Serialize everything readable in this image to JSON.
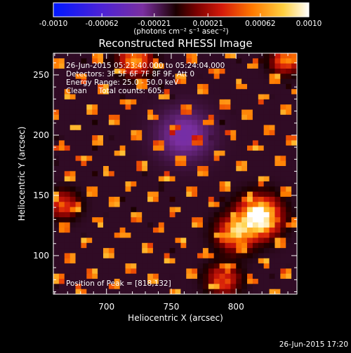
{
  "chart_data": {
    "type": "heatmap",
    "title": "Reconstructed RHESSI Image",
    "xlabel": "Heliocentric X (arcsec)",
    "ylabel": "Heliocentric Y (arcsec)",
    "xlim": [
      659,
      847
    ],
    "ylim": [
      68,
      268
    ],
    "x_ticks": [
      700,
      750,
      800
    ],
    "y_ticks": [
      100,
      150,
      200,
      250
    ],
    "colorbar": {
      "range": [
        -0.001,
        0.001
      ],
      "ticks": [
        "-0.0010",
        "-0.00062",
        "-0.00021",
        "0.00021",
        "0.00062",
        "0.0010"
      ],
      "units": "(photons cm⁻² s⁻¹ asec⁻²)",
      "colormap": [
        "#0018ff",
        "#5a20c8",
        "#7a2fa0",
        "#2a0000",
        "#b01010",
        "#ff3d00",
        "#ff9a00",
        "#ffe060",
        "#ffffff"
      ]
    },
    "annotations": [
      "26-Jun-2015 05:23:40.000 to 05:24:04.000",
      "Detectors: 3F 5F 6F 7F 8F 9F, Att 0",
      "Energy Range: 25.0 - 50.0 keV",
      "Clean     Total counts: 605.",
      "Position of Peak = [818,132]"
    ],
    "peak": {
      "x": 818,
      "y": 132
    },
    "grid_cols": 44,
    "grid_rows": 47
  },
  "footer_timestamp": "26-Jun-2015 17:20"
}
